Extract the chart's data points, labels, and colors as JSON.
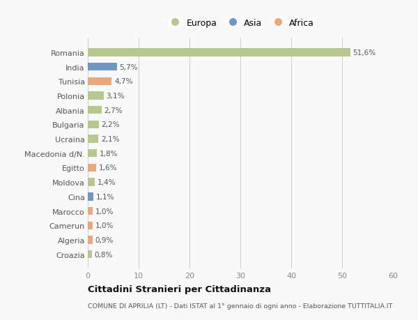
{
  "countries": [
    "Romania",
    "India",
    "Tunisia",
    "Polonia",
    "Albania",
    "Bulgaria",
    "Ucraina",
    "Macedonia d/N.",
    "Egitto",
    "Moldova",
    "Cina",
    "Marocco",
    "Camerun",
    "Algeria",
    "Croazia"
  ],
  "values": [
    51.6,
    5.7,
    4.7,
    3.1,
    2.7,
    2.2,
    2.1,
    1.8,
    1.6,
    1.4,
    1.1,
    1.0,
    1.0,
    0.9,
    0.8
  ],
  "labels": [
    "51,6%",
    "5,7%",
    "4,7%",
    "3,1%",
    "2,7%",
    "2,2%",
    "2,1%",
    "1,8%",
    "1,6%",
    "1,4%",
    "1,1%",
    "1,0%",
    "1,0%",
    "0,9%",
    "0,8%"
  ],
  "continents": [
    "Europa",
    "Asia",
    "Africa",
    "Europa",
    "Europa",
    "Europa",
    "Europa",
    "Europa",
    "Africa",
    "Europa",
    "Asia",
    "Africa",
    "Africa",
    "Africa",
    "Europa"
  ],
  "colors": {
    "Europa": "#b5c98e",
    "Asia": "#7295c2",
    "Africa": "#e8a87c"
  },
  "title": "Cittadini Stranieri per Cittadinanza",
  "subtitle": "COMUNE DI APRILIA (LT) - Dati ISTAT al 1° gennaio di ogni anno - Elaborazione TUTTITALIA.IT",
  "xlim": [
    0,
    60
  ],
  "xticks": [
    0,
    10,
    20,
    30,
    40,
    50,
    60
  ],
  "background_color": "#f9f9f9",
  "grid_color": "#cccccc",
  "bar_height": 0.55
}
